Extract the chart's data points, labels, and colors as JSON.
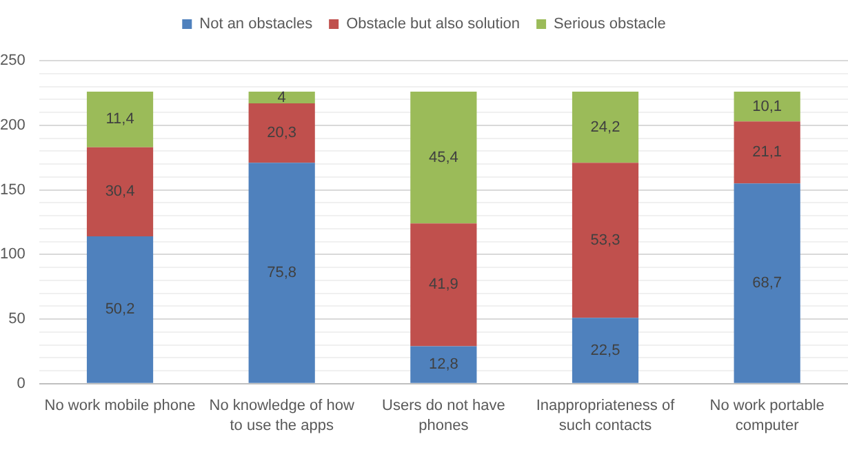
{
  "chart_data": {
    "type": "bar",
    "stacked": true,
    "categories": [
      "No work mobile phone",
      "No knowledge of how to use the apps",
      "Users do not have phones",
      "Inappropriateness of such contacts",
      "No work portable computer"
    ],
    "series": [
      {
        "name": "Not an obstacles",
        "color": "#4f81bd",
        "values": [
          114,
          171,
          29,
          51,
          155
        ]
      },
      {
        "name": "Obstacle but also solution",
        "color": "#c0504d",
        "values": [
          69,
          46,
          95,
          120,
          48
        ]
      },
      {
        "name": "Serious obstacle",
        "color": "#9bbb59",
        "values": [
          43,
          9,
          102,
          55,
          23
        ]
      }
    ],
    "annotations": [
      "50,2",
      "30,4",
      "11,4",
      "75,8",
      "20,3",
      "4",
      "12,8",
      "41,9",
      "45,4",
      "22,5",
      "53,3",
      "24,2",
      "68,7",
      "21,1",
      "10,1"
    ],
    "ylim": [
      0,
      250
    ],
    "yticks": [
      0,
      {
        "value": 10,
        "label": null
      },
      {
        "value": 20,
        "label": null
      },
      {
        "value": 30,
        "label": null
      },
      {
        "value": 40,
        "label": null
      },
      50,
      {
        "value": 60,
        "label": null
      },
      {
        "value": 70,
        "label": null
      },
      {
        "value": 80,
        "label": null
      },
      {
        "value": 90,
        "label": null
      },
      100,
      {
        "value": 110,
        "label": null
      },
      {
        "value": 120,
        "label": null
      },
      {
        "value": 130,
        "label": null
      },
      {
        "value": 140,
        "label": null
      },
      150,
      {
        "value": 160,
        "label": null
      },
      {
        "value": 170,
        "label": null
      },
      {
        "value": 180,
        "label": null
      },
      {
        "value": 190,
        "label": null
      },
      200,
      {
        "value": 210,
        "label": null
      },
      {
        "value": 220,
        "label": null
      },
      {
        "value": 230,
        "label": null
      },
      {
        "value": 240,
        "label": null
      },
      250
    ],
    "grid": "y",
    "legend": "top"
  }
}
